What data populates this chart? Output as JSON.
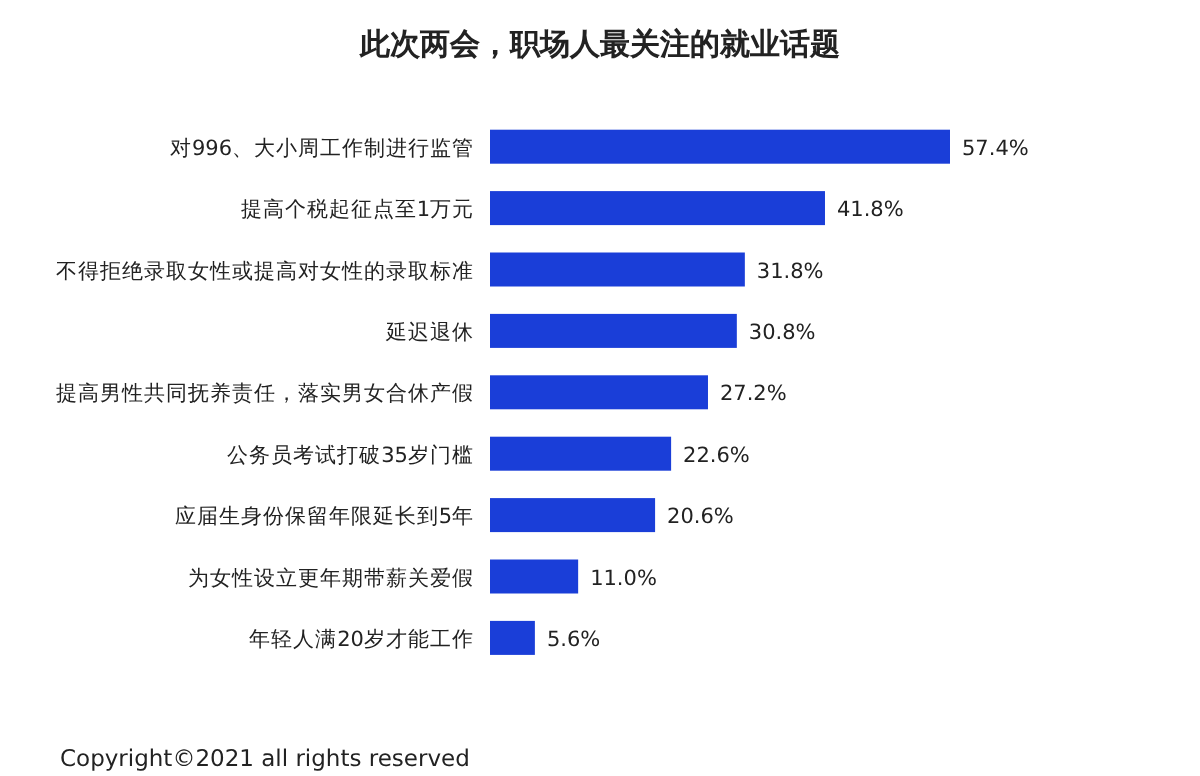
{
  "chart_data": {
    "type": "bar",
    "orientation": "horizontal",
    "title": "此次两会，职场人最关注的就业话题",
    "categories": [
      "对996、大小周工作制进行监管",
      "提高个税起征点至1万元",
      "不得拒绝录取女性或提高对女性的录取标准",
      "延迟退休",
      "提高男性共同抚养责任，落实男女合休产假",
      "公务员考试打破35岁门槛",
      "应届生身份保留年限延长到5年",
      "为女性设立更年期带薪关爱假",
      "年轻人满20岁才能工作"
    ],
    "values": [
      57.4,
      41.8,
      31.8,
      30.8,
      27.2,
      22.6,
      20.6,
      11.0,
      5.6
    ],
    "value_labels": [
      "57.4%",
      "41.8%",
      "31.8%",
      "30.8%",
      "27.2%",
      "22.6%",
      "20.6%",
      "11.0%",
      "5.6%"
    ],
    "color": "#1a3ed8",
    "annotations": [
      "Copyright©2021 all rights reserved"
    ]
  }
}
